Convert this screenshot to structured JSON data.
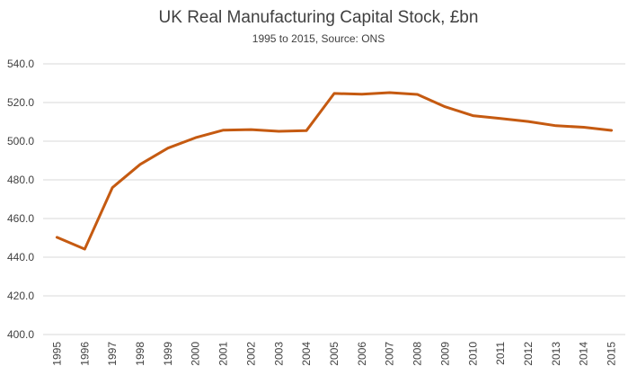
{
  "chart_data": {
    "type": "line",
    "title": "UK Real Manufacturing Capital Stock, £bn",
    "subtitle": "1995 to 2015, Source: ONS",
    "xlabel": "",
    "ylabel": "",
    "x": [
      "1995",
      "1996",
      "1997",
      "1998",
      "1999",
      "2000",
      "2001",
      "2002",
      "2003",
      "2004",
      "2005",
      "2006",
      "2007",
      "2008",
      "2009",
      "2010",
      "2011",
      "2012",
      "2013",
      "2014",
      "2015"
    ],
    "series": [
      {
        "name": "",
        "color": "#c55a11",
        "values": [
          450.3,
          444.2,
          476.0,
          488.0,
          496.4,
          501.8,
          505.7,
          506.0,
          505.1,
          505.5,
          524.7,
          524.3,
          525.1,
          524.2,
          517.8,
          513.2,
          511.7,
          510.2,
          508.0,
          507.2,
          505.6
        ]
      }
    ],
    "ylim": [
      400,
      540
    ],
    "yticks": [
      400,
      420,
      440,
      460,
      480,
      500,
      520,
      540
    ],
    "ytick_labels": [
      "400.0",
      "420.0",
      "440.0",
      "460.0",
      "480.0",
      "500.0",
      "520.0",
      "540.0"
    ],
    "grid": true,
    "legend": "none"
  }
}
